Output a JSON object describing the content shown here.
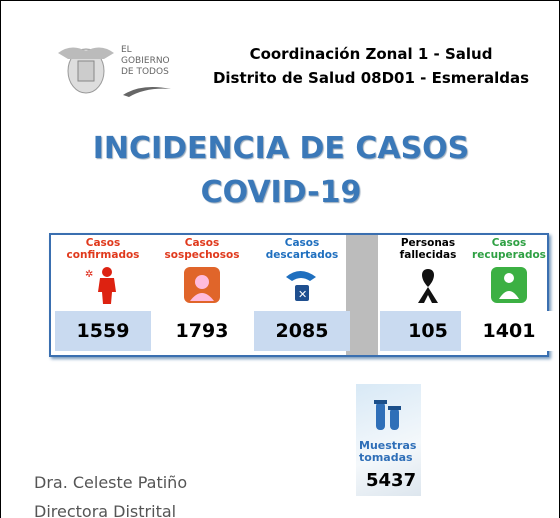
{
  "logo": {
    "lines": [
      "EL",
      "GOBIERNO",
      "DE TODOS"
    ]
  },
  "header": {
    "line1": "Coordinación Zonal 1 - Salud",
    "line2": "Distrito de Salud 08D01 - Esmeraldas"
  },
  "title": {
    "line1": "INCIDENCIA DE CASOS",
    "line2": "COVID-19"
  },
  "stats": [
    {
      "label": [
        "Casos",
        "confirmados"
      ],
      "value": "1559"
    },
    {
      "label": [
        "Casos",
        "sospechosos"
      ],
      "value": "1793"
    },
    {
      "label": [
        "Casos",
        "descartados"
      ],
      "value": "2085"
    },
    {
      "label": [
        "Personas",
        "fallecidas"
      ],
      "value": "105"
    },
    {
      "label": [
        "Casos",
        "recuperados"
      ],
      "value": "1401"
    }
  ],
  "samples": {
    "label": [
      "Muestras",
      "tomadas"
    ],
    "value": "5437"
  },
  "signature": {
    "name": "Dra. Celeste Patiño",
    "role": "Directora Distrital"
  }
}
